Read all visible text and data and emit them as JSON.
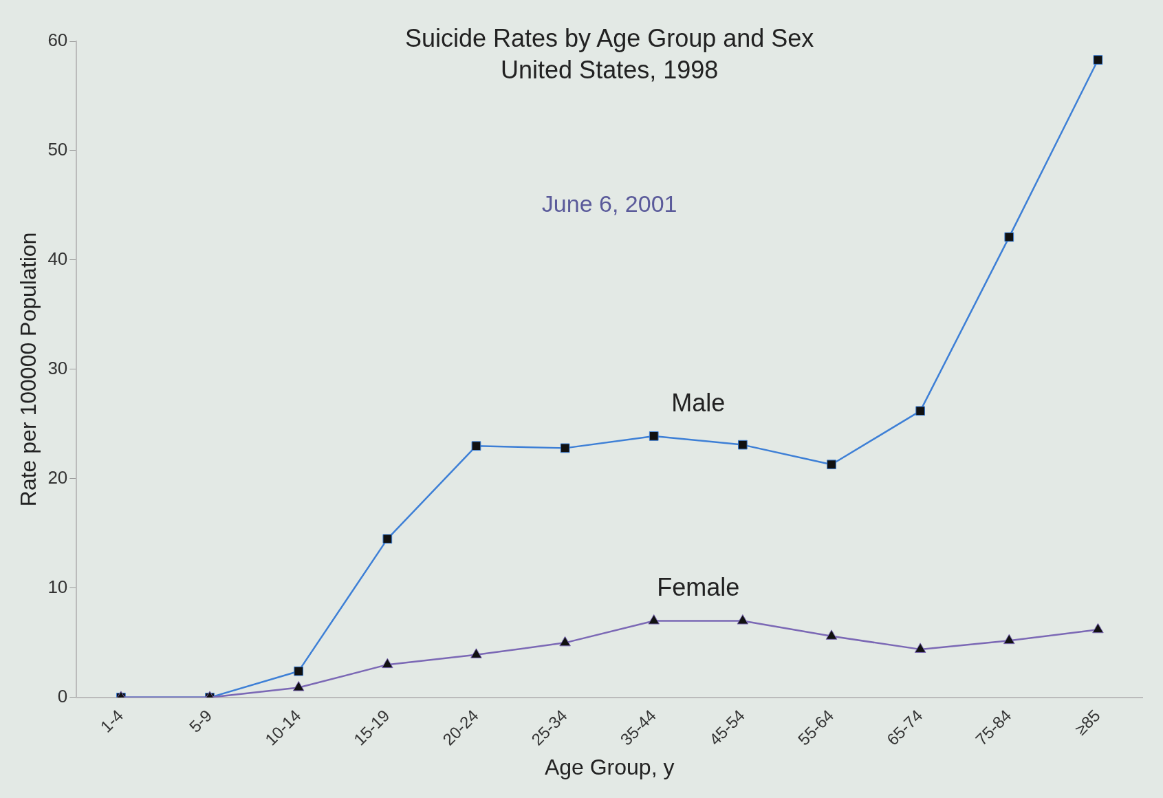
{
  "chart_data": {
    "type": "line",
    "title": "Suicide Rates by Age Group and Sex\nUnited States, 1998",
    "xlabel": "Age Group, y",
    "ylabel": "Rate per 100000 Population",
    "categories": [
      "1-4",
      "5-9",
      "10-14",
      "15-19",
      "20-24",
      "25-34",
      "35-44",
      "45-54",
      "55-64",
      "65-74",
      "75-84",
      "≥85"
    ],
    "series": [
      {
        "name": "Male",
        "color": "#3d7fd6",
        "marker": "square",
        "values": [
          0,
          0,
          2.4,
          14.5,
          23,
          22.8,
          23.9,
          23.1,
          21.3,
          26.2,
          42.1,
          58.3
        ]
      },
      {
        "name": "Female",
        "color": "#7b68b5",
        "marker": "triangle",
        "values": [
          0,
          0,
          0.9,
          3.0,
          3.9,
          5.0,
          7.0,
          7.0,
          5.6,
          4.4,
          5.2,
          6.2
        ]
      }
    ],
    "ylim": [
      0,
      60
    ],
    "yticks": [
      0,
      10,
      20,
      30,
      40,
      50,
      60
    ],
    "grid": false,
    "legend": false,
    "annotations": [
      "June 6, 2001"
    ]
  }
}
